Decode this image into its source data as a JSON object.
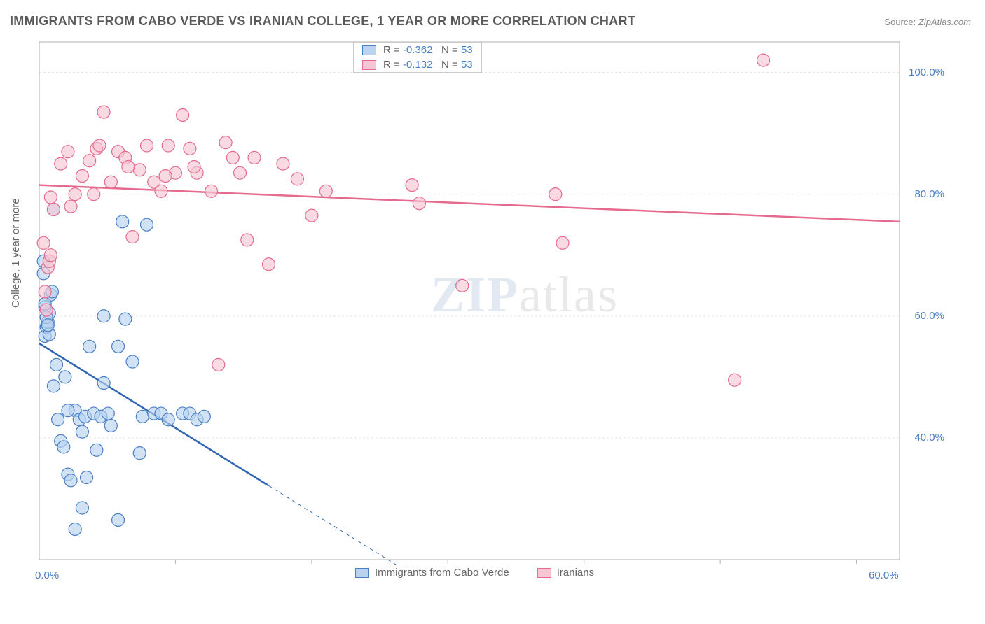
{
  "title": "IMMIGRANTS FROM CABO VERDE VS IRANIAN COLLEGE, 1 YEAR OR MORE CORRELATION CHART",
  "source_label": "Source:",
  "source_name": "ZipAtlas.com",
  "y_axis_title": "College, 1 year or more",
  "watermark": {
    "part1": "ZIP",
    "part2": "atlas"
  },
  "chart": {
    "type": "scatter",
    "xlim": [
      0,
      60
    ],
    "ylim": [
      20,
      105
    ],
    "background_color": "#ffffff",
    "grid_color": "#e5e5e5",
    "axis_color": "#b0b0b0",
    "x_ticks": [
      0,
      60
    ],
    "x_tick_labels": [
      "0.0%",
      "60.0%"
    ],
    "x_minor_ticks": [
      9.5,
      19,
      28.5,
      38,
      47.5,
      57
    ],
    "y_ticks": [
      40,
      60,
      80,
      100
    ],
    "y_tick_labels": [
      "40.0%",
      "60.0%",
      "80.0%",
      "100.0%"
    ],
    "label_fontsize": 15,
    "label_color": "#4a7fc4",
    "title_fontsize": 18,
    "title_color": "#5a5a5a",
    "legend_top": {
      "rows": [
        {
          "swatch_fill": "#b9d3ef",
          "swatch_stroke": "#4a7fc4",
          "r_label": "R =",
          "r_value": "-0.362",
          "n_label": "N =",
          "n_value": "53"
        },
        {
          "swatch_fill": "#f6c6d4",
          "swatch_stroke": "#e56a8e",
          "r_label": "R =",
          "r_value": "-0.132",
          "n_label": "N =",
          "n_value": "53"
        }
      ]
    },
    "legend_bottom": [
      {
        "swatch_fill": "#b9d3ef",
        "swatch_stroke": "#4a7fc4",
        "label": "Immigrants from Cabo Verde"
      },
      {
        "swatch_fill": "#f6c6d4",
        "swatch_stroke": "#e56a8e",
        "label": "Iranians"
      }
    ],
    "series": [
      {
        "name": "Immigrants from Cabo Verde",
        "marker_fill": "#b9d3ef",
        "marker_fill_opacity": 0.65,
        "marker_stroke": "#4a7fc4",
        "marker_radius": 9,
        "line_color": "#2f66b3",
        "line_width": 2.5,
        "line_dash_after_x": 16,
        "line_from": [
          0,
          55.5
        ],
        "line_to": [
          25,
          19
        ],
        "points": [
          [
            0.4,
            56.7
          ],
          [
            0.5,
            58.2
          ],
          [
            0.6,
            59.0
          ],
          [
            0.7,
            60.5
          ],
          [
            0.8,
            63.5
          ],
          [
            0.4,
            61.5
          ],
          [
            0.5,
            59.8
          ],
          [
            1.0,
            48.5
          ],
          [
            1.3,
            43.0
          ],
          [
            1.5,
            39.5
          ],
          [
            1.7,
            38.5
          ],
          [
            2.0,
            34.0
          ],
          [
            2.2,
            33.0
          ],
          [
            2.5,
            44.5
          ],
          [
            2.8,
            43.0
          ],
          [
            3.0,
            41.0
          ],
          [
            3.2,
            43.5
          ],
          [
            3.5,
            55.0
          ],
          [
            3.8,
            44.0
          ],
          [
            4.0,
            38.0
          ],
          [
            4.3,
            43.5
          ],
          [
            4.5,
            60.0
          ],
          [
            5.0,
            42.0
          ],
          [
            5.5,
            55.0
          ],
          [
            5.8,
            75.5
          ],
          [
            6.0,
            59.5
          ],
          [
            6.5,
            52.5
          ],
          [
            7.0,
            37.5
          ],
          [
            7.2,
            43.5
          ],
          [
            7.5,
            75.0
          ],
          [
            8.0,
            44.0
          ],
          [
            8.5,
            44.0
          ],
          [
            9.0,
            43.0
          ],
          [
            10.0,
            44.0
          ],
          [
            10.5,
            44.0
          ],
          [
            11.0,
            43.0
          ],
          [
            11.5,
            43.5
          ],
          [
            3.0,
            28.5
          ],
          [
            2.5,
            25.0
          ],
          [
            1.8,
            50.0
          ],
          [
            1.2,
            52.0
          ],
          [
            0.9,
            64.0
          ],
          [
            0.3,
            67.0
          ],
          [
            0.3,
            69.0
          ],
          [
            1.0,
            77.5
          ],
          [
            0.4,
            62.0
          ],
          [
            0.7,
            57.0
          ],
          [
            0.6,
            58.5
          ],
          [
            2.0,
            44.5
          ],
          [
            4.5,
            49.0
          ],
          [
            4.8,
            44.0
          ],
          [
            5.5,
            26.5
          ],
          [
            3.3,
            33.5
          ]
        ]
      },
      {
        "name": "Iranians",
        "marker_fill": "#f6c6d4",
        "marker_fill_opacity": 0.65,
        "marker_stroke": "#e56a8e",
        "marker_radius": 9,
        "line_color": "#e56a8e",
        "line_width": 2.5,
        "line_from": [
          0,
          81.5
        ],
        "line_to": [
          60,
          75.5
        ],
        "points": [
          [
            0.8,
            79.5
          ],
          [
            1.0,
            77.5
          ],
          [
            1.5,
            85.0
          ],
          [
            2.0,
            87.0
          ],
          [
            2.5,
            80.0
          ],
          [
            3.0,
            83.0
          ],
          [
            3.5,
            85.5
          ],
          [
            4.0,
            87.5
          ],
          [
            4.5,
            93.5
          ],
          [
            5.0,
            82.0
          ],
          [
            5.5,
            87.0
          ],
          [
            6.0,
            86.0
          ],
          [
            6.5,
            73.0
          ],
          [
            7.0,
            84.0
          ],
          [
            7.5,
            88.0
          ],
          [
            8.0,
            82.0
          ],
          [
            8.5,
            80.5
          ],
          [
            9.0,
            88.0
          ],
          [
            9.5,
            83.5
          ],
          [
            10.0,
            93.0
          ],
          [
            10.5,
            87.5
          ],
          [
            11.0,
            83.5
          ],
          [
            12.0,
            80.5
          ],
          [
            13.0,
            88.5
          ],
          [
            13.5,
            86.0
          ],
          [
            14.0,
            83.5
          ],
          [
            14.5,
            72.5
          ],
          [
            15.0,
            86.0
          ],
          [
            16.0,
            68.5
          ],
          [
            17.0,
            85.0
          ],
          [
            18.0,
            82.5
          ],
          [
            19.0,
            76.5
          ],
          [
            20.0,
            80.5
          ],
          [
            26.0,
            81.5
          ],
          [
            26.5,
            78.5
          ],
          [
            29.5,
            65.0
          ],
          [
            12.5,
            52.0
          ],
          [
            36.0,
            80.0
          ],
          [
            36.5,
            72.0
          ],
          [
            50.5,
            102.0
          ],
          [
            48.5,
            49.5
          ],
          [
            0.3,
            72.0
          ],
          [
            0.4,
            64.0
          ],
          [
            0.5,
            61.0
          ],
          [
            0.6,
            68.0
          ],
          [
            0.7,
            69.0
          ],
          [
            0.8,
            70.0
          ],
          [
            2.2,
            78.0
          ],
          [
            6.2,
            84.5
          ],
          [
            8.8,
            83.0
          ],
          [
            3.8,
            80.0
          ],
          [
            4.2,
            88.0
          ],
          [
            10.8,
            84.5
          ]
        ]
      }
    ]
  }
}
